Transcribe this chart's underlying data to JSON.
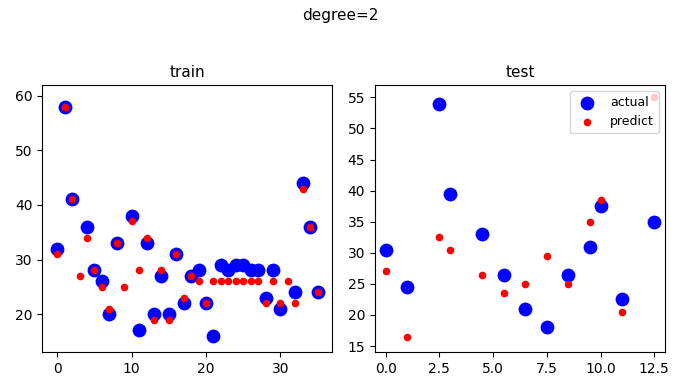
{
  "title": "degree=2",
  "train_title": "train",
  "test_title": "test",
  "train_actual_x": [
    0,
    1,
    2,
    4,
    5,
    6,
    7,
    8,
    10,
    11,
    12,
    13,
    14,
    15,
    16,
    17,
    18,
    19,
    20,
    21,
    22,
    23,
    24,
    25,
    26,
    27,
    28,
    29,
    30,
    32,
    33,
    34,
    35
  ],
  "train_actual_y": [
    32,
    58,
    41,
    36,
    28,
    26,
    20,
    33,
    38,
    17,
    33,
    20,
    27,
    20,
    31,
    22,
    27,
    28,
    22,
    16,
    29,
    28,
    29,
    29,
    28,
    28,
    23,
    28,
    21,
    24,
    44,
    36,
    24
  ],
  "train_predict_x": [
    0,
    1,
    2,
    3,
    4,
    5,
    6,
    7,
    8,
    9,
    10,
    11,
    12,
    13,
    14,
    15,
    16,
    17,
    18,
    19,
    20,
    21,
    22,
    23,
    24,
    25,
    26,
    27,
    28,
    29,
    30,
    31,
    32,
    33,
    34,
    35
  ],
  "train_predict_y": [
    31,
    58,
    41,
    27,
    34,
    28,
    25,
    21,
    33,
    25,
    37,
    28,
    34,
    19,
    28,
    19,
    31,
    23,
    27,
    26,
    22,
    26,
    26,
    26,
    26,
    26,
    26,
    26,
    22,
    26,
    22,
    26,
    22,
    43,
    36,
    24
  ],
  "test_actual_x": [
    0.0,
    1.0,
    2.5,
    3.0,
    4.5,
    5.5,
    6.5,
    7.5,
    8.5,
    9.5,
    10.0,
    11.0,
    12.5
  ],
  "test_actual_y": [
    30.5,
    24.5,
    54,
    39.5,
    33,
    26.5,
    21,
    18,
    26.5,
    31,
    37.5,
    22.5,
    35
  ],
  "test_predict_x": [
    0.0,
    1.0,
    2.5,
    3.0,
    4.5,
    5.5,
    6.5,
    7.5,
    8.5,
    9.5,
    10.0,
    11.0,
    12.5
  ],
  "test_predict_y": [
    27,
    16.5,
    32.5,
    30.5,
    26.5,
    23.5,
    25,
    29.5,
    25,
    35,
    38.5,
    20.5,
    55
  ],
  "actual_color": "#0000ff",
  "predict_color": "#ff0000",
  "actual_size": 80,
  "predict_size": 20,
  "train_xlim": [
    -2,
    37
  ],
  "train_ylim": [
    13,
    62
  ],
  "test_xlim": [
    -0.5,
    13.0
  ],
  "test_ylim": [
    14,
    57
  ],
  "title_fontsize": 11,
  "subtitle_fontsize": 11
}
